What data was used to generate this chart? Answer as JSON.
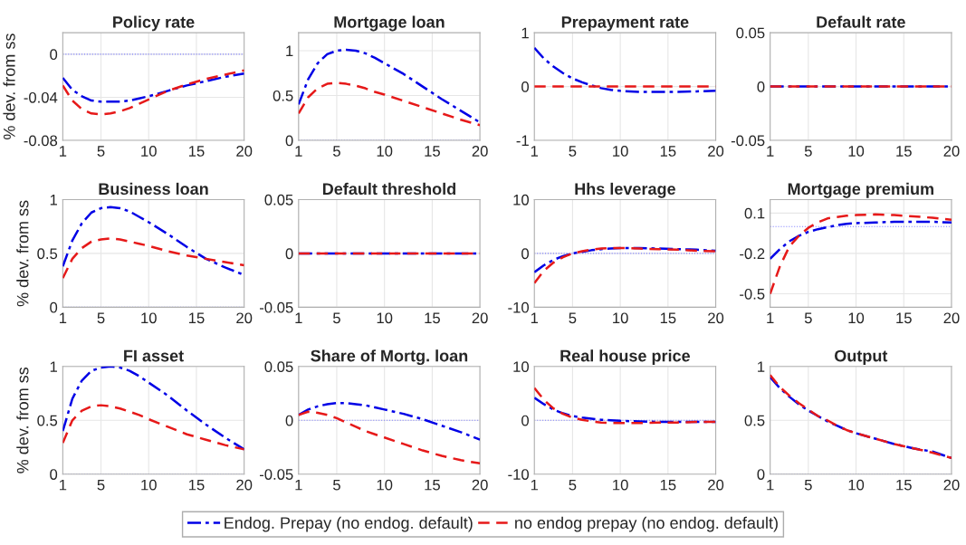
{
  "chart_data": [
    {
      "type": "line",
      "title": "Policy rate",
      "ylabel": "% dev. from ss",
      "x": [
        1,
        2,
        3,
        4,
        5,
        6,
        7,
        8,
        9,
        10,
        12,
        14,
        16,
        18,
        20
      ],
      "xlim": [
        1,
        20
      ],
      "xticks": [
        1,
        5,
        10,
        15,
        20
      ],
      "ylim": [
        -0.08,
        0.02
      ],
      "yticks": [
        -0.08,
        -0.04,
        0
      ],
      "grid": true,
      "legend": "bottom",
      "ref_lines": [
        {
          "axis": "y",
          "value": 0,
          "color": "#8080ff",
          "line_style": "dotted"
        }
      ],
      "series": [
        {
          "name": "Endog. Prepay (no endog. default)",
          "color": "#0000e6",
          "line_style": "dashdot",
          "values": [
            -0.022,
            -0.033,
            -0.039,
            -0.043,
            -0.044,
            -0.044,
            -0.044,
            -0.043,
            -0.041,
            -0.039,
            -0.034,
            -0.029,
            -0.025,
            -0.021,
            -0.018
          ]
        },
        {
          "name": "no endog prepay (no endog. default)",
          "color": "#e61919",
          "line_style": "dashed",
          "values": [
            -0.029,
            -0.043,
            -0.051,
            -0.055,
            -0.056,
            -0.055,
            -0.053,
            -0.05,
            -0.046,
            -0.042,
            -0.034,
            -0.028,
            -0.023,
            -0.019,
            -0.015
          ]
        }
      ]
    },
    {
      "type": "line",
      "title": "Mortgage loan",
      "x": [
        1,
        2,
        3,
        4,
        5,
        6,
        7,
        8,
        9,
        10,
        12,
        14,
        16,
        18,
        20
      ],
      "xlim": [
        1,
        20
      ],
      "xticks": [
        1,
        5,
        10,
        15,
        20
      ],
      "ylim": [
        0,
        1.2
      ],
      "yticks": [
        0,
        0.5,
        1
      ],
      "grid": true,
      "ref_lines": [
        {
          "axis": "y",
          "value": 0,
          "color": "#8080ff",
          "line_style": "dotted"
        }
      ],
      "series": [
        {
          "name": "Endog. Prepay (no endog. default)",
          "color": "#0000e6",
          "line_style": "dashdot",
          "values": [
            0.4,
            0.68,
            0.86,
            0.96,
            1.0,
            1.01,
            1.0,
            0.97,
            0.92,
            0.86,
            0.74,
            0.6,
            0.46,
            0.33,
            0.2
          ]
        },
        {
          "name": "no endog prepay (no endog. default)",
          "color": "#e61919",
          "line_style": "dashed",
          "values": [
            0.3,
            0.48,
            0.58,
            0.63,
            0.64,
            0.63,
            0.61,
            0.58,
            0.54,
            0.51,
            0.44,
            0.37,
            0.3,
            0.23,
            0.17
          ]
        }
      ]
    },
    {
      "type": "line",
      "title": "Prepayment rate",
      "x": [
        1,
        2,
        3,
        4,
        5,
        6,
        7,
        8,
        9,
        10,
        12,
        14,
        16,
        18,
        20
      ],
      "xlim": [
        1,
        20
      ],
      "xticks": [
        1,
        5,
        10,
        15,
        20
      ],
      "ylim": [
        -1,
        1
      ],
      "yticks": [
        -1,
        0,
        1
      ],
      "grid": true,
      "series": [
        {
          "name": "Endog. Prepay (no endog. default)",
          "color": "#0000e6",
          "line_style": "dashdot",
          "values": [
            0.72,
            0.52,
            0.37,
            0.25,
            0.15,
            0.08,
            0.02,
            -0.03,
            -0.06,
            -0.08,
            -0.1,
            -0.1,
            -0.1,
            -0.09,
            -0.08
          ]
        },
        {
          "name": "no endog prepay (no endog. default)",
          "color": "#e61919",
          "line_style": "dashed",
          "values": [
            0,
            0,
            0,
            0,
            0,
            0,
            0,
            0,
            0,
            0,
            0,
            0,
            0,
            0,
            0
          ]
        }
      ]
    },
    {
      "type": "line",
      "title": "Default rate",
      "x": [
        1,
        2,
        3,
        4,
        5,
        6,
        7,
        8,
        9,
        10,
        12,
        14,
        16,
        18,
        20
      ],
      "xlim": [
        1,
        20
      ],
      "xticks": [
        1,
        5,
        10,
        15,
        20
      ],
      "ylim": [
        -0.05,
        0.05
      ],
      "yticks": [
        -0.05,
        0,
        0.05
      ],
      "grid": true,
      "series": [
        {
          "name": "Endog. Prepay (no endog. default)",
          "color": "#0000e6",
          "line_style": "dashdot",
          "values": [
            0,
            0,
            0,
            0,
            0,
            0,
            0,
            0,
            0,
            0,
            0,
            0,
            0,
            0,
            0
          ]
        },
        {
          "name": "no endog prepay (no endog. default)",
          "color": "#e61919",
          "line_style": "dashed",
          "values": [
            0,
            0,
            0,
            0,
            0,
            0,
            0,
            0,
            0,
            0,
            0,
            0,
            0,
            0,
            0
          ]
        }
      ]
    },
    {
      "type": "line",
      "title": "Business loan",
      "ylabel": "% dev. from ss",
      "x": [
        1,
        2,
        3,
        4,
        5,
        6,
        7,
        8,
        9,
        10,
        12,
        14,
        16,
        18,
        20
      ],
      "xlim": [
        1,
        20
      ],
      "xticks": [
        1,
        5,
        10,
        15,
        20
      ],
      "ylim": [
        0,
        1
      ],
      "yticks": [
        0,
        0.5,
        1
      ],
      "grid": true,
      "ref_lines": [
        {
          "axis": "y",
          "value": 0,
          "color": "#8080ff",
          "line_style": "dotted"
        }
      ],
      "series": [
        {
          "name": "Endog. Prepay (no endog. default)",
          "color": "#0000e6",
          "line_style": "dashdot",
          "values": [
            0.38,
            0.62,
            0.78,
            0.88,
            0.92,
            0.93,
            0.92,
            0.89,
            0.84,
            0.79,
            0.68,
            0.56,
            0.45,
            0.37,
            0.3
          ]
        },
        {
          "name": "no endog prepay (no endog. default)",
          "color": "#e61919",
          "line_style": "dashed",
          "values": [
            0.27,
            0.45,
            0.55,
            0.61,
            0.63,
            0.64,
            0.63,
            0.61,
            0.59,
            0.57,
            0.52,
            0.48,
            0.45,
            0.42,
            0.39
          ]
        }
      ]
    },
    {
      "type": "line",
      "title": "Default threshold",
      "x": [
        1,
        2,
        3,
        4,
        5,
        6,
        7,
        8,
        9,
        10,
        12,
        14,
        16,
        18,
        20
      ],
      "xlim": [
        1,
        20
      ],
      "xticks": [
        1,
        5,
        10,
        15,
        20
      ],
      "ylim": [
        -0.05,
        0.05
      ],
      "yticks": [
        -0.05,
        0,
        0.05
      ],
      "grid": true,
      "series": [
        {
          "name": "Endog. Prepay (no endog. default)",
          "color": "#0000e6",
          "line_style": "dashdot",
          "values": [
            0,
            0,
            0,
            0,
            0,
            0,
            0,
            0,
            0,
            0,
            0,
            0,
            0,
            0,
            0
          ]
        },
        {
          "name": "no endog prepay (no endog. default)",
          "color": "#e61919",
          "line_style": "dashed",
          "values": [
            0,
            0,
            0,
            0,
            0,
            0,
            0,
            0,
            0,
            0,
            0,
            0,
            0,
            0,
            0
          ]
        }
      ]
    },
    {
      "type": "line",
      "title": "Hhs leverage",
      "x": [
        1,
        2,
        3,
        4,
        5,
        6,
        7,
        8,
        9,
        10,
        12,
        14,
        16,
        18,
        20
      ],
      "xlim": [
        1,
        20
      ],
      "xticks": [
        1,
        5,
        10,
        15,
        20
      ],
      "ylim": [
        -10,
        10
      ],
      "yticks": [
        -10,
        0,
        10
      ],
      "grid": true,
      "ref_lines": [
        {
          "axis": "y",
          "value": 0,
          "color": "#8080ff",
          "line_style": "dotted"
        }
      ],
      "series": [
        {
          "name": "Endog. Prepay (no endog. default)",
          "color": "#0000e6",
          "line_style": "dashdot",
          "values": [
            -3.5,
            -2.2,
            -1.2,
            -0.5,
            0,
            0.3,
            0.6,
            0.8,
            0.9,
            1.0,
            1.0,
            0.9,
            0.8,
            0.7,
            0.5
          ]
        },
        {
          "name": "no endog prepay (no endog. default)",
          "color": "#e61919",
          "line_style": "dashed",
          "values": [
            -5.5,
            -3.2,
            -1.7,
            -0.7,
            0,
            0.4,
            0.7,
            0.9,
            1.0,
            1.0,
            0.9,
            0.8,
            0.7,
            0.5,
            0.4
          ]
        }
      ]
    },
    {
      "type": "line",
      "title": "Mortgage premium",
      "x": [
        1,
        2,
        3,
        4,
        5,
        6,
        7,
        8,
        9,
        10,
        12,
        14,
        16,
        18,
        20
      ],
      "xlim": [
        1,
        20
      ],
      "xticks": [
        1,
        5,
        10,
        15,
        20
      ],
      "ylim": [
        -0.6,
        0.2
      ],
      "yticks": [
        -0.5,
        -0.2,
        0.1
      ],
      "grid": true,
      "ref_lines": [
        {
          "axis": "y",
          "value": 0,
          "color": "#8080ff",
          "line_style": "dotted"
        }
      ],
      "series": [
        {
          "name": "Endog. Prepay (no endog. default)",
          "color": "#0000e6",
          "line_style": "dashdot",
          "values": [
            -0.24,
            -0.17,
            -0.11,
            -0.07,
            -0.04,
            -0.02,
            -0.005,
            0.01,
            0.02,
            0.025,
            0.03,
            0.035,
            0.035,
            0.035,
            0.03
          ]
        },
        {
          "name": "no endog prepay (no endog. default)",
          "color": "#e61919",
          "line_style": "dashed",
          "values": [
            -0.5,
            -0.3,
            -0.15,
            -0.07,
            -0.01,
            0.03,
            0.06,
            0.07,
            0.08,
            0.085,
            0.09,
            0.085,
            0.075,
            0.065,
            0.05
          ]
        }
      ]
    },
    {
      "type": "line",
      "title": "FI asset",
      "ylabel": "% dev. from ss",
      "x": [
        1,
        2,
        3,
        4,
        5,
        6,
        7,
        8,
        9,
        10,
        12,
        14,
        16,
        18,
        20
      ],
      "xlim": [
        1,
        20
      ],
      "xticks": [
        1,
        5,
        10,
        15,
        20
      ],
      "ylim": [
        0,
        1
      ],
      "yticks": [
        0,
        0.5,
        1
      ],
      "grid": true,
      "ref_lines": [
        {
          "axis": "y",
          "value": 0,
          "color": "#8080ff",
          "line_style": "dotted"
        }
      ],
      "series": [
        {
          "name": "Endog. Prepay (no endog. default)",
          "color": "#0000e6",
          "line_style": "dashdot",
          "values": [
            0.4,
            0.7,
            0.87,
            0.96,
            0.99,
            1.0,
            0.99,
            0.96,
            0.91,
            0.85,
            0.73,
            0.59,
            0.46,
            0.34,
            0.23
          ]
        },
        {
          "name": "no endog prepay (no endog. default)",
          "color": "#e61919",
          "line_style": "dashed",
          "values": [
            0.29,
            0.5,
            0.59,
            0.63,
            0.64,
            0.63,
            0.61,
            0.58,
            0.55,
            0.51,
            0.44,
            0.37,
            0.32,
            0.27,
            0.23
          ]
        }
      ]
    },
    {
      "type": "line",
      "title": "Share of Mortg. loan",
      "x": [
        1,
        2,
        3,
        4,
        5,
        6,
        7,
        8,
        9,
        10,
        12,
        14,
        16,
        18,
        20
      ],
      "xlim": [
        1,
        20
      ],
      "xticks": [
        1,
        5,
        10,
        15,
        20
      ],
      "ylim": [
        -0.05,
        0.05
      ],
      "yticks": [
        -0.05,
        0,
        0.05
      ],
      "grid": true,
      "ref_lines": [
        {
          "axis": "y",
          "value": 0,
          "color": "#8080ff",
          "line_style": "dotted"
        }
      ],
      "series": [
        {
          "name": "Endog. Prepay (no endog. default)",
          "color": "#0000e6",
          "line_style": "dashdot",
          "values": [
            0.005,
            0.01,
            0.013,
            0.015,
            0.016,
            0.016,
            0.015,
            0.014,
            0.012,
            0.01,
            0.006,
            0.001,
            -0.005,
            -0.011,
            -0.018
          ]
        },
        {
          "name": "no endog prepay (no endog. default)",
          "color": "#e61919",
          "line_style": "dashed",
          "values": [
            0.005,
            0.008,
            0.007,
            0.005,
            0.002,
            -0.002,
            -0.006,
            -0.01,
            -0.013,
            -0.016,
            -0.022,
            -0.028,
            -0.033,
            -0.037,
            -0.04
          ]
        }
      ]
    },
    {
      "type": "line",
      "title": "Real house price",
      "x": [
        1,
        2,
        3,
        4,
        5,
        6,
        7,
        8,
        9,
        10,
        12,
        14,
        16,
        18,
        20
      ],
      "xlim": [
        1,
        20
      ],
      "xticks": [
        1,
        5,
        10,
        15,
        20
      ],
      "ylim": [
        -10,
        10
      ],
      "yticks": [
        -10,
        0,
        10
      ],
      "grid": true,
      "ref_lines": [
        {
          "axis": "y",
          "value": 0,
          "color": "#8080ff",
          "line_style": "dotted"
        }
      ],
      "series": [
        {
          "name": "Endog. Prepay (no endog. default)",
          "color": "#0000e6",
          "line_style": "dashdot",
          "values": [
            4.2,
            3.0,
            2.0,
            1.3,
            0.8,
            0.5,
            0.3,
            0.1,
            0,
            -0.1,
            -0.2,
            -0.3,
            -0.3,
            -0.3,
            -0.3
          ]
        },
        {
          "name": "no endog prepay (no endog. default)",
          "color": "#e61919",
          "line_style": "dashed",
          "values": [
            6,
            3.8,
            2.2,
            1.2,
            0.5,
            0.1,
            -0.2,
            -0.4,
            -0.5,
            -0.5,
            -0.5,
            -0.4,
            -0.4,
            -0.3,
            -0.3
          ]
        }
      ]
    },
    {
      "type": "line",
      "title": "Output",
      "x": [
        1,
        2,
        3,
        4,
        5,
        6,
        7,
        8,
        9,
        10,
        12,
        14,
        16,
        18,
        20
      ],
      "xlim": [
        1,
        20
      ],
      "xticks": [
        1,
        5,
        10,
        15,
        20
      ],
      "ylim": [
        0,
        1
      ],
      "yticks": [
        0,
        0.5,
        1
      ],
      "grid": true,
      "ref_lines": [
        {
          "axis": "y",
          "value": 0,
          "color": "#8080ff",
          "line_style": "dotted"
        }
      ],
      "series": [
        {
          "name": "Endog. Prepay (no endog. default)",
          "color": "#0000e6",
          "line_style": "dashdot",
          "values": [
            0.9,
            0.8,
            0.72,
            0.65,
            0.59,
            0.54,
            0.49,
            0.45,
            0.41,
            0.38,
            0.33,
            0.28,
            0.24,
            0.21,
            0.15
          ]
        },
        {
          "name": "no endog prepay (no endog. default)",
          "color": "#e61919",
          "line_style": "dashed",
          "values": [
            0.92,
            0.81,
            0.73,
            0.66,
            0.6,
            0.54,
            0.5,
            0.45,
            0.41,
            0.38,
            0.33,
            0.28,
            0.24,
            0.2,
            0.15
          ]
        }
      ]
    }
  ]
}
